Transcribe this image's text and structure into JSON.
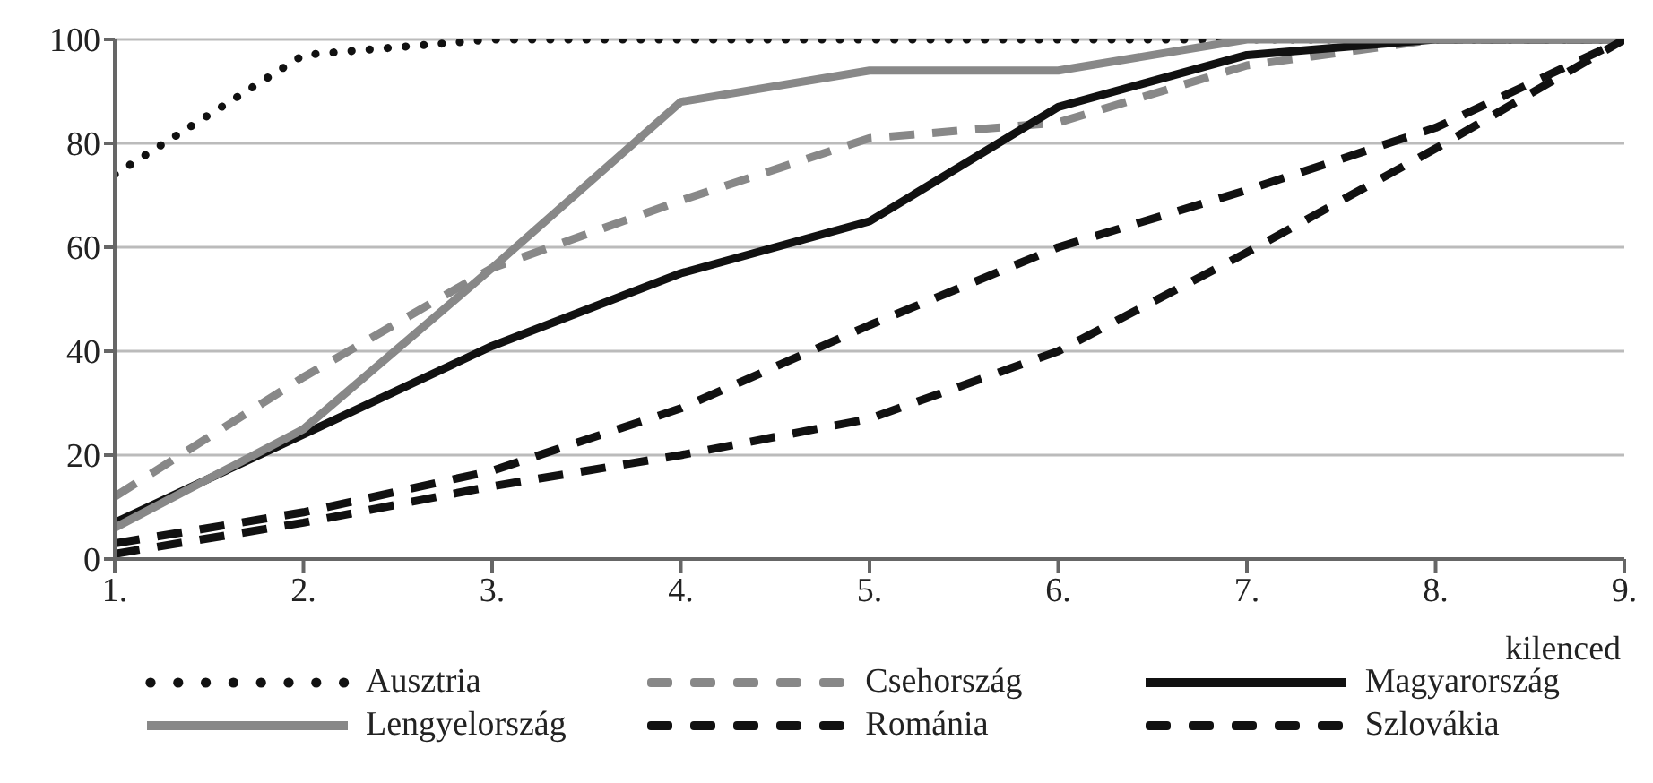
{
  "chart_data": {
    "type": "line",
    "xlabel": "kilenced",
    "x": [
      1,
      2,
      3,
      4,
      5,
      6,
      7,
      8,
      9
    ],
    "xlim": [
      1,
      9
    ],
    "xticks": [
      {
        "value": 1,
        "label": "1."
      },
      {
        "value": 2,
        "label": "2."
      },
      {
        "value": 3,
        "label": "3."
      },
      {
        "value": 4,
        "label": "4."
      },
      {
        "value": 5,
        "label": "5."
      },
      {
        "value": 6,
        "label": "6."
      },
      {
        "value": 7,
        "label": "7."
      },
      {
        "value": 8,
        "label": "8."
      },
      {
        "value": 9,
        "label": "9."
      }
    ],
    "ylim": [
      0,
      100
    ],
    "yticks": [
      0,
      20,
      40,
      60,
      80,
      100
    ],
    "grid": "y",
    "legend": "bottom",
    "marker": "none",
    "series": [
      {
        "name": "Ausztria",
        "color": "#111111",
        "line_style": "dotted",
        "values": [
          74,
          97,
          100,
          100,
          100,
          100,
          100,
          100,
          100
        ]
      },
      {
        "name": "Csehország",
        "color": "#888888",
        "line_style": "dashed",
        "values": [
          12,
          35,
          56,
          69,
          81,
          84,
          95,
          100,
          100
        ]
      },
      {
        "name": "Magyarország",
        "color": "#111111",
        "line_style": "solid",
        "values": [
          7,
          24,
          41,
          55,
          65,
          87,
          97,
          100,
          100
        ]
      },
      {
        "name": "Lengyelország",
        "color": "#888888",
        "line_style": "solid",
        "values": [
          6,
          25,
          56,
          88,
          94,
          94,
          100,
          100,
          100
        ]
      },
      {
        "name": "Románia",
        "color": "#111111",
        "line_style": "dashed",
        "values": [
          1,
          7,
          14,
          20,
          27,
          40,
          59,
          79,
          100
        ]
      },
      {
        "name": "Szlovákia",
        "color": "#111111",
        "line_style": "dashed",
        "values": [
          3,
          9,
          17,
          29,
          45,
          60,
          71,
          83,
          100
        ]
      }
    ]
  }
}
